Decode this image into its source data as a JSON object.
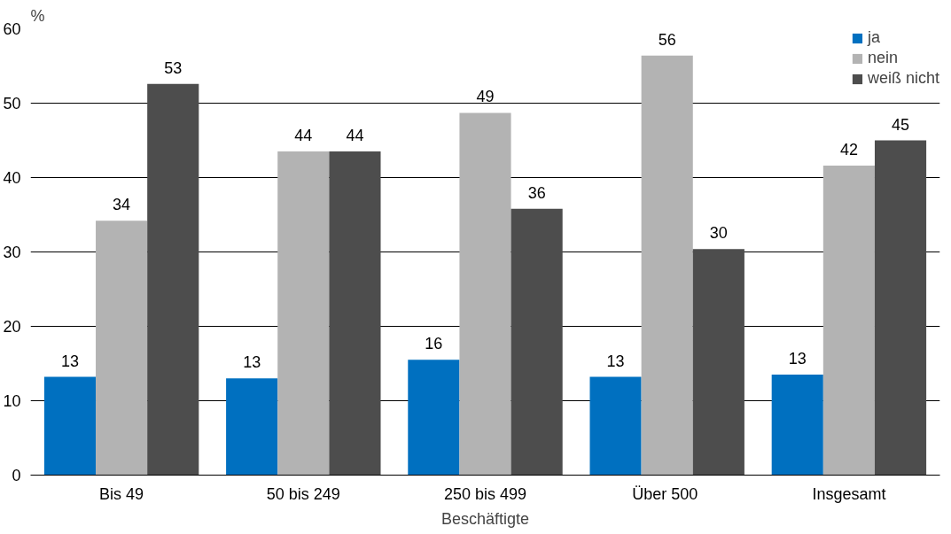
{
  "chart_data": {
    "type": "bar",
    "ylabel": "%",
    "xlabel": "Beschäftigte",
    "categories": [
      "Bis 49",
      "50 bis 249",
      "250 bis 499",
      "Über  500",
      "Insgesamt"
    ],
    "series": [
      {
        "name": "ja",
        "color": "#0070c0",
        "values": [
          13.2,
          13.0,
          15.5,
          13.2,
          13.5
        ],
        "value_labels": [
          "13",
          "13",
          "16",
          "13",
          "13"
        ]
      },
      {
        "name": "nein",
        "color": "#b3b3b3",
        "values": [
          34.2,
          43.5,
          48.7,
          56.4,
          41.6
        ],
        "value_labels": [
          "34",
          "44",
          "49",
          "56",
          "42"
        ]
      },
      {
        "name": "weiß nicht",
        "color": "#4d4d4d",
        "values": [
          52.6,
          43.5,
          35.8,
          30.4,
          45.0
        ],
        "value_labels": [
          "53",
          "44",
          "36",
          "30",
          "45"
        ]
      }
    ],
    "ylim": [
      0,
      60
    ],
    "yticks": [
      0,
      10,
      20,
      30,
      40,
      50,
      60
    ],
    "grid": "y",
    "legend": "top right"
  }
}
